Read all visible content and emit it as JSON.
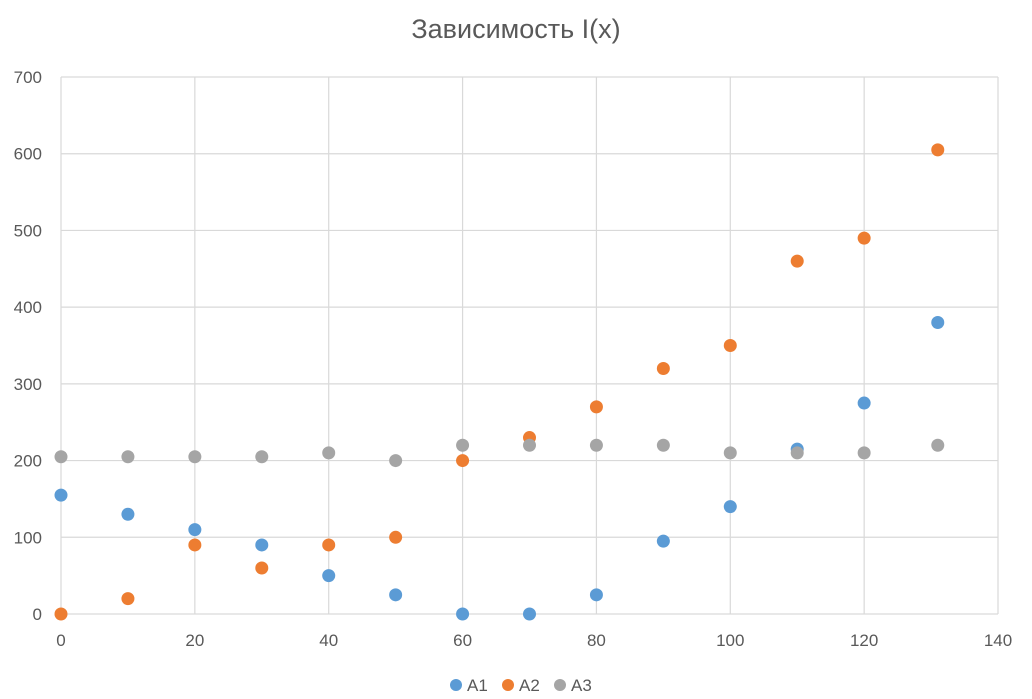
{
  "chart_data": {
    "type": "scatter",
    "title": "Зависимость I(x)",
    "xlabel": "",
    "ylabel": "",
    "xlim": [
      0,
      140
    ],
    "ylim": [
      0,
      700
    ],
    "xticks": [
      0,
      20,
      40,
      60,
      80,
      100,
      120,
      140
    ],
    "yticks": [
      0,
      100,
      200,
      300,
      400,
      500,
      600,
      700
    ],
    "grid": true,
    "legend_position": "bottom",
    "series": [
      {
        "name": "A1",
        "color": "#5b9bd5",
        "points": [
          [
            0,
            155
          ],
          [
            10,
            130
          ],
          [
            20,
            110
          ],
          [
            30,
            90
          ],
          [
            40,
            50
          ],
          [
            50,
            25
          ],
          [
            60,
            0
          ],
          [
            70,
            0
          ],
          [
            80,
            25
          ],
          [
            90,
            95
          ],
          [
            100,
            140
          ],
          [
            110,
            215
          ],
          [
            120,
            275
          ],
          [
            131,
            380
          ]
        ]
      },
      {
        "name": "A2",
        "color": "#ed7d31",
        "points": [
          [
            0,
            0
          ],
          [
            10,
            20
          ],
          [
            20,
            90
          ],
          [
            30,
            60
          ],
          [
            40,
            90
          ],
          [
            50,
            100
          ],
          [
            60,
            200
          ],
          [
            70,
            230
          ],
          [
            80,
            270
          ],
          [
            90,
            320
          ],
          [
            100,
            350
          ],
          [
            110,
            460
          ],
          [
            120,
            490
          ],
          [
            131,
            605
          ]
        ]
      },
      {
        "name": "A3",
        "color": "#a5a5a5",
        "points": [
          [
            0,
            205
          ],
          [
            10,
            205
          ],
          [
            20,
            205
          ],
          [
            30,
            205
          ],
          [
            40,
            210
          ],
          [
            50,
            200
          ],
          [
            60,
            220
          ],
          [
            70,
            220
          ],
          [
            80,
            220
          ],
          [
            90,
            220
          ],
          [
            100,
            210
          ],
          [
            110,
            210
          ],
          [
            120,
            210
          ],
          [
            131,
            220
          ]
        ]
      }
    ]
  }
}
